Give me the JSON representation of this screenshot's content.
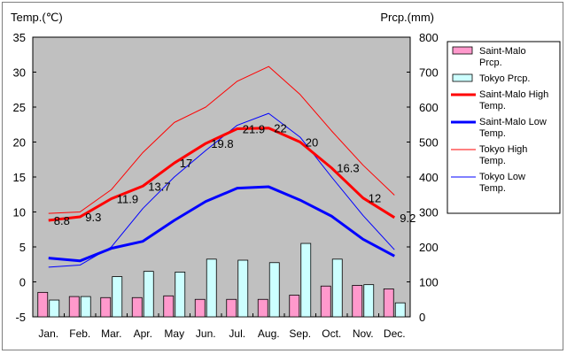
{
  "chart_data": {
    "type": "bar+line",
    "left_axis_label": "Temp.(℃)",
    "right_axis_label": "Prcp.(mm)",
    "left_range": [
      -5,
      35
    ],
    "left_ticks": [
      -5,
      0,
      5,
      10,
      15,
      20,
      25,
      30,
      35
    ],
    "right_range": [
      0,
      800
    ],
    "right_ticks": [
      0,
      100,
      200,
      300,
      400,
      500,
      600,
      700,
      800
    ],
    "categories": [
      "Jan.",
      "Feb.",
      "Mar.",
      "Apr.",
      "May",
      "Jun.",
      "Jul.",
      "Aug.",
      "Sep.",
      "Oct.",
      "Nov.",
      "Dec."
    ],
    "grid": false,
    "legend_position": "right",
    "bar_series": [
      {
        "name": "Saint-Malo Prcp.",
        "color": "#ff99cc",
        "values": [
          70,
          58,
          55,
          55,
          60,
          50,
          50,
          50,
          62,
          88,
          90,
          80
        ]
      },
      {
        "name": "Tokyo Prcp.",
        "color": "#ccffff",
        "values": [
          48,
          58,
          115,
          130,
          128,
          165,
          162,
          155,
          210,
          165,
          92,
          40
        ]
      }
    ],
    "line_series": [
      {
        "name": "Saint-Malo High Temp.",
        "color": "#ff0000",
        "width": 3,
        "values": [
          8.8,
          9.3,
          11.9,
          13.7,
          17.0,
          19.8,
          21.9,
          22.0,
          20.0,
          16.3,
          12.0,
          9.2
        ]
      },
      {
        "name": "Saint-Malo Low Temp.",
        "color": "#0000ff",
        "width": 3,
        "values": [
          3.4,
          3.0,
          4.8,
          5.8,
          8.8,
          11.5,
          13.4,
          13.6,
          11.7,
          9.4,
          6.1,
          3.7
        ]
      },
      {
        "name": "Tokyo High Temp.",
        "color": "#ff0000",
        "width": 1,
        "values": [
          9.8,
          10.0,
          13.2,
          18.5,
          22.8,
          25.0,
          28.7,
          30.8,
          26.8,
          21.6,
          16.7,
          12.4
        ]
      },
      {
        "name": "Tokyo Low Temp.",
        "color": "#0000ff",
        "width": 1,
        "values": [
          2.1,
          2.4,
          5.0,
          10.5,
          15.0,
          18.8,
          22.4,
          24.1,
          20.7,
          15.0,
          9.5,
          4.6
        ]
      }
    ],
    "data_labels": [
      "8.8",
      "9.3",
      "11.9",
      "13.7",
      "17",
      "19.8",
      "21.9",
      "22",
      "20",
      "16.3",
      "12",
      "9.2"
    ],
    "plot_background": "#c0c0c0"
  }
}
